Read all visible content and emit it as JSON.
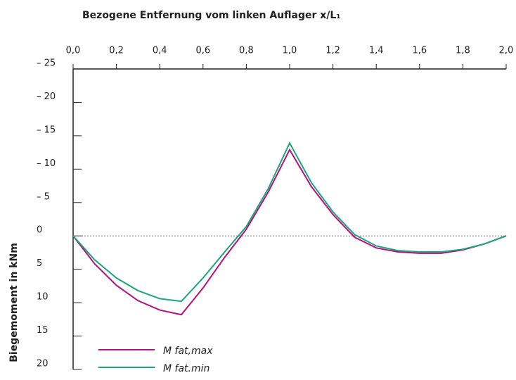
{
  "chart_data": {
    "type": "line",
    "x_label": "Bezogene Entfernung vom linken Auflager x/L₁",
    "y_label": "Biegemoment in kNm",
    "x": [
      0,
      0.1,
      0.2,
      0.3,
      0.4,
      0.5,
      0.6,
      0.7,
      0.8,
      0.9,
      1.0,
      1.1,
      1.2,
      1.3,
      1.4,
      1.5,
      1.6,
      1.7,
      1.8,
      1.9,
      2.0
    ],
    "series": [
      {
        "name": "M fat,max",
        "color": "#b5117f",
        "values": [
          0,
          4.2,
          7.4,
          9.7,
          11.1,
          11.8,
          7.8,
          3.2,
          -1.0,
          -6.5,
          -12.9,
          -7.4,
          -3.2,
          0.2,
          1.8,
          2.4,
          2.6,
          2.6,
          2.1,
          1.2,
          0
        ]
      },
      {
        "name": "M fat.min",
        "color": "#1aa67a",
        "values": [
          0,
          3.6,
          6.3,
          8.2,
          9.4,
          9.8,
          6.3,
          2.4,
          -1.4,
          -7.0,
          -13.9,
          -8.0,
          -3.6,
          -0.2,
          1.5,
          2.2,
          2.4,
          2.4,
          2.0,
          1.2,
          0
        ]
      }
    ],
    "xlim": [
      0,
      2.0
    ],
    "xticks": [
      {
        "value": 0,
        "label": "0,0"
      },
      {
        "value": 0.2,
        "label": "0,2"
      },
      {
        "value": 0.4,
        "label": "0,4"
      },
      {
        "value": 0.6,
        "label": "0,6"
      },
      {
        "value": 0.8,
        "label": "0,8"
      },
      {
        "value": 1.0,
        "label": "1,0"
      },
      {
        "value": 1.2,
        "label": "1,2"
      },
      {
        "value": 1.4,
        "label": "1,4"
      },
      {
        "value": 1.6,
        "label": "1,6"
      },
      {
        "value": 1.8,
        "label": "1,8"
      },
      {
        "value": 2.0,
        "label": "2,0"
      }
    ],
    "ylim": [
      -25,
      20
    ],
    "y_inverted": true,
    "yticks": [
      {
        "value": -25,
        "label": "– 25"
      },
      {
        "value": -20,
        "label": "– 20"
      },
      {
        "value": -15,
        "label": "– 15"
      },
      {
        "value": -10,
        "label": "– 10"
      },
      {
        "value": -5,
        "label": "– 5"
      },
      0,
      5,
      10,
      15,
      20
    ],
    "legend": "lower left"
  }
}
